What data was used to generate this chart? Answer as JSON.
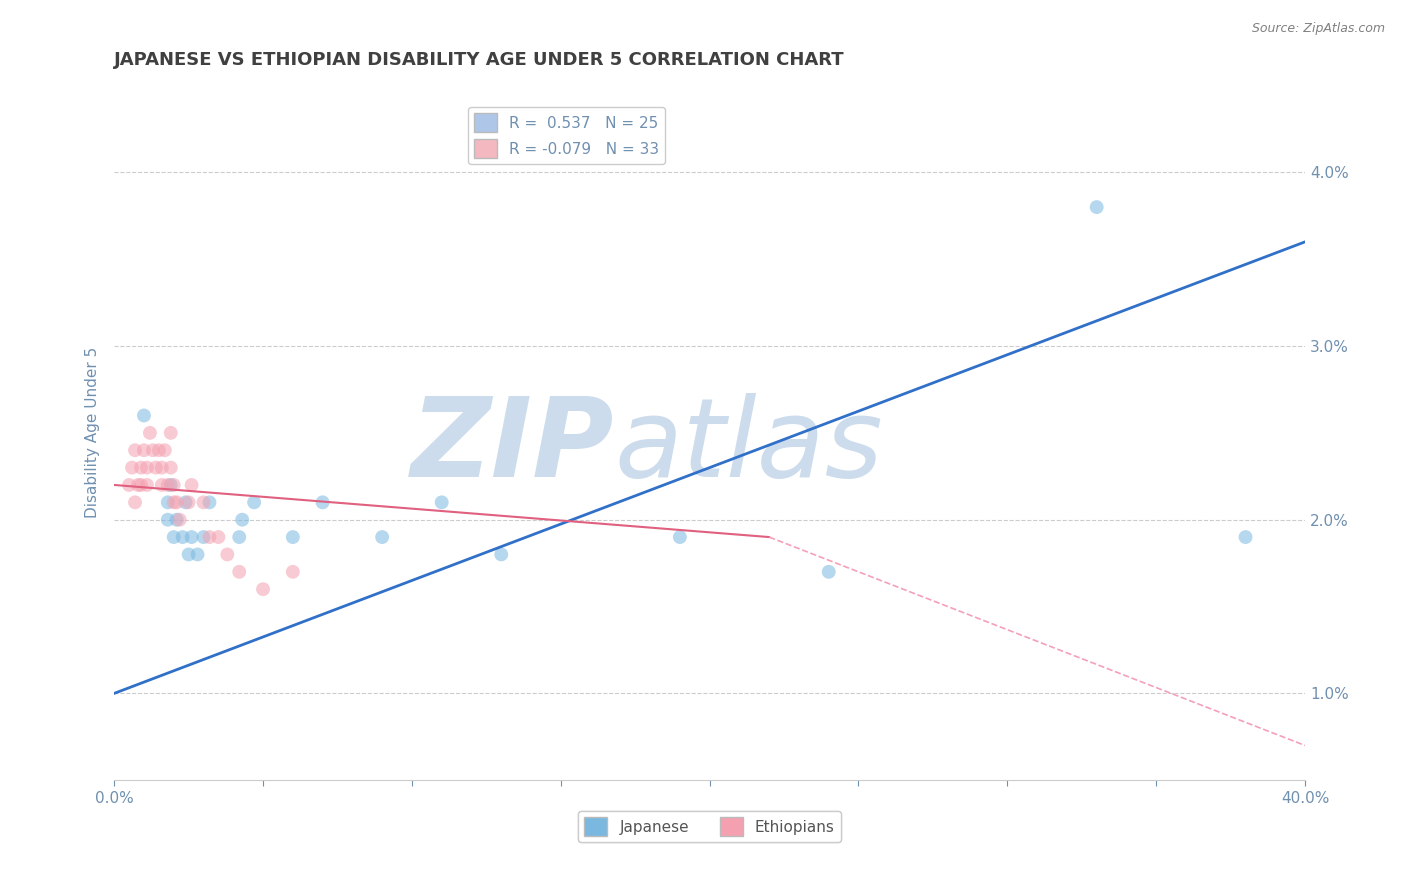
{
  "title": "JAPANESE VS ETHIOPIAN DISABILITY AGE UNDER 5 CORRELATION CHART",
  "source_text": "Source: ZipAtlas.com",
  "ylabel": "Disability Age Under 5",
  "xlim": [
    0.0,
    0.4
  ],
  "ylim": [
    0.005,
    0.045
  ],
  "xticks": [
    0.0,
    0.05,
    0.1,
    0.15,
    0.2,
    0.25,
    0.3,
    0.35,
    0.4
  ],
  "xticklabels": [
    "0.0%",
    "",
    "",
    "",
    "",
    "",
    "",
    "",
    "40.0%"
  ],
  "yticks": [
    0.01,
    0.02,
    0.03,
    0.04
  ],
  "yticklabels": [
    "1.0%",
    "2.0%",
    "3.0%",
    "4.0%"
  ],
  "legend_entries": [
    {
      "label": "R =  0.537   N = 25",
      "color": "#aec6e8"
    },
    {
      "label": "R = -0.079   N = 33",
      "color": "#f4b8c1"
    }
  ],
  "japanese_dots": [
    [
      0.01,
      0.026
    ],
    [
      0.018,
      0.021
    ],
    [
      0.018,
      0.02
    ],
    [
      0.019,
      0.022
    ],
    [
      0.02,
      0.019
    ],
    [
      0.021,
      0.02
    ],
    [
      0.023,
      0.019
    ],
    [
      0.024,
      0.021
    ],
    [
      0.025,
      0.018
    ],
    [
      0.026,
      0.019
    ],
    [
      0.028,
      0.018
    ],
    [
      0.03,
      0.019
    ],
    [
      0.032,
      0.021
    ],
    [
      0.042,
      0.019
    ],
    [
      0.043,
      0.02
    ],
    [
      0.047,
      0.021
    ],
    [
      0.06,
      0.019
    ],
    [
      0.07,
      0.021
    ],
    [
      0.09,
      0.019
    ],
    [
      0.11,
      0.021
    ],
    [
      0.13,
      0.018
    ],
    [
      0.19,
      0.019
    ],
    [
      0.24,
      0.017
    ],
    [
      0.33,
      0.038
    ],
    [
      0.38,
      0.019
    ]
  ],
  "ethiopian_dots": [
    [
      0.005,
      0.022
    ],
    [
      0.006,
      0.023
    ],
    [
      0.007,
      0.021
    ],
    [
      0.007,
      0.024
    ],
    [
      0.008,
      0.022
    ],
    [
      0.009,
      0.022
    ],
    [
      0.009,
      0.023
    ],
    [
      0.01,
      0.024
    ],
    [
      0.011,
      0.023
    ],
    [
      0.011,
      0.022
    ],
    [
      0.012,
      0.025
    ],
    [
      0.013,
      0.024
    ],
    [
      0.014,
      0.023
    ],
    [
      0.015,
      0.024
    ],
    [
      0.016,
      0.023
    ],
    [
      0.016,
      0.022
    ],
    [
      0.017,
      0.024
    ],
    [
      0.018,
      0.022
    ],
    [
      0.019,
      0.025
    ],
    [
      0.019,
      0.023
    ],
    [
      0.02,
      0.021
    ],
    [
      0.02,
      0.022
    ],
    [
      0.021,
      0.021
    ],
    [
      0.022,
      0.02
    ],
    [
      0.025,
      0.021
    ],
    [
      0.026,
      0.022
    ],
    [
      0.03,
      0.021
    ],
    [
      0.032,
      0.019
    ],
    [
      0.035,
      0.019
    ],
    [
      0.038,
      0.018
    ],
    [
      0.042,
      0.017
    ],
    [
      0.05,
      0.016
    ],
    [
      0.06,
      0.017
    ]
  ],
  "japanese_line": [
    [
      0.0,
      0.01
    ],
    [
      0.4,
      0.036
    ]
  ],
  "ethiopian_line_solid": [
    [
      0.0,
      0.022
    ],
    [
      0.22,
      0.019
    ]
  ],
  "ethiopian_line_dashed": [
    [
      0.22,
      0.019
    ],
    [
      0.4,
      0.007
    ]
  ],
  "dot_size": 100,
  "dot_alpha": 0.55,
  "japanese_color": "#7bb8e0",
  "ethiopian_color": "#f4a0b0",
  "japanese_line_color": "#3070c8",
  "ethiopian_line_solid_color": "#e06080",
  "ethiopian_line_dashed_color": "#f4a0b8",
  "watermark_zip": "ZIP",
  "watermark_atlas": "atlas",
  "watermark_color": "#ccdcec",
  "background_color": "#ffffff",
  "grid_color": "#cccccc",
  "title_color": "#404040",
  "axis_label_color": "#7090b0",
  "tick_color": "#7090b0"
}
